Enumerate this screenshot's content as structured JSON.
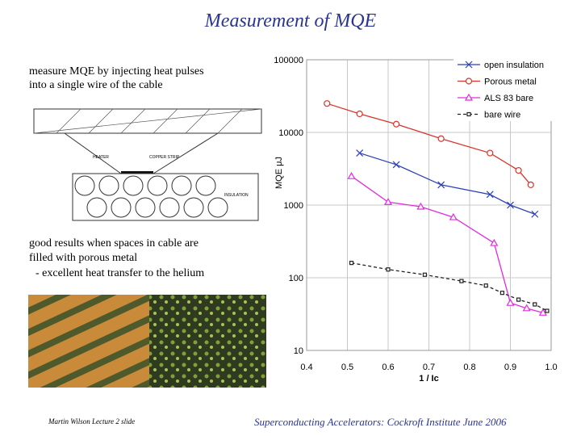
{
  "slide": {
    "title": "Measurement of MQE",
    "intro": [
      "measure MQE by injecting heat pulses",
      "into a single wire of the cable"
    ],
    "diagram_labels": [
      "HEATER",
      "COPPER STRIP",
      "INSULATION"
    ],
    "result": [
      "good results when spaces in cable are",
      "filled with porous metal",
      "- excellent heat transfer to the helium"
    ],
    "footer_left": "Martin Wilson Lecture 2 slide",
    "footer_right": "Superconducting Accelerators:  Cockroft Institute June 2006"
  },
  "chart_data": {
    "type": "line",
    "x_label": "1 / Ic",
    "y_label": "MQE μJ",
    "log_y": true,
    "grid": true,
    "xlim": [
      0.4,
      1.0
    ],
    "xticks": [
      0.4,
      0.5,
      0.6,
      0.7,
      0.8,
      0.9,
      {
        "value": 1,
        "label": "1.0"
      }
    ],
    "ylim": [
      10,
      100000
    ],
    "yticks": [
      10,
      100,
      1000,
      10000,
      100000
    ],
    "series": [
      {
        "name": "open insulation",
        "color": "#2b3fb8",
        "marker": "x",
        "dash": false,
        "x": [
          0.53,
          0.62,
          0.73,
          0.85,
          0.9,
          0.96
        ],
        "values": [
          5200,
          3600,
          1900,
          1400,
          1000,
          750
        ]
      },
      {
        "name": "Porous metal",
        "color": "#d9342b",
        "marker": "circle",
        "dash": false,
        "x": [
          0.45,
          0.53,
          0.62,
          0.73,
          0.85,
          0.92,
          0.95
        ],
        "values": [
          25000,
          18000,
          13000,
          8200,
          5200,
          3000,
          1900
        ]
      },
      {
        "name": "ALS 83 bare",
        "color": "#e02be0",
        "marker": "triangle",
        "dash": false,
        "x": [
          0.51,
          0.6,
          0.68,
          0.76,
          0.86,
          0.9,
          0.94,
          0.98
        ],
        "values": [
          2500,
          1100,
          950,
          680,
          300,
          45,
          38,
          33
        ]
      },
      {
        "name": "bare wire",
        "color": "#222222",
        "marker": "square",
        "dash": true,
        "x": [
          0.51,
          0.6,
          0.69,
          0.78,
          0.84,
          0.88,
          0.92,
          0.96,
          0.99
        ],
        "values": [
          160,
          130,
          110,
          90,
          78,
          62,
          50,
          43,
          35
        ]
      }
    ]
  }
}
